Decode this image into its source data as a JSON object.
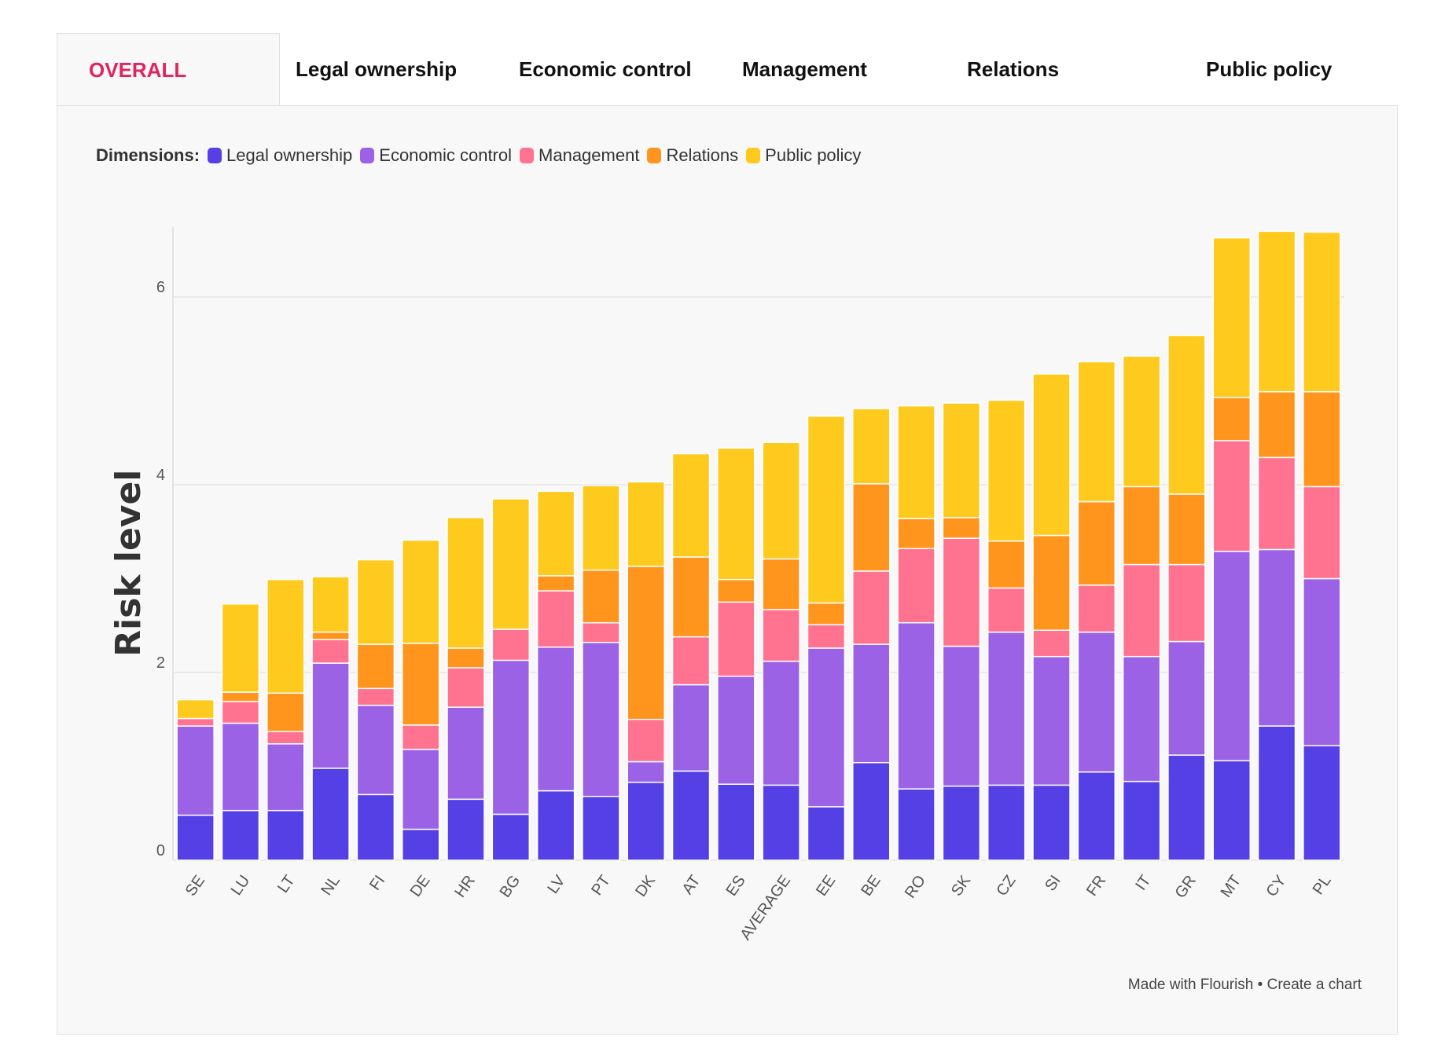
{
  "tabs": [
    {
      "label": "OVERALL"
    },
    {
      "label": "Legal ownership"
    },
    {
      "label": "Economic control"
    },
    {
      "label": "Management"
    },
    {
      "label": "Relations"
    },
    {
      "label": "Public policy"
    }
  ],
  "legend": {
    "title": "Dimensions:",
    "items": [
      {
        "label": "Legal ownership",
        "color": "#5540e6"
      },
      {
        "label": "Economic control",
        "color": "#9b62e6"
      },
      {
        "label": "Management",
        "color": "#ff7290"
      },
      {
        "label": "Relations",
        "color": "#ff951c"
      },
      {
        "label": "Public policy",
        "color": "#ffca1e"
      }
    ]
  },
  "footer": {
    "made_with": "Made with Flourish",
    "separator": "•",
    "create": "Create a chart"
  },
  "chart_data": {
    "type": "bar",
    "stacked": true,
    "ylabel": "Risk level",
    "ylim": [
      0,
      7
    ],
    "yticks": [
      0,
      2,
      4,
      6
    ],
    "grid": true,
    "legend_position": "top-left",
    "categories": [
      "SE",
      "LU",
      "LT",
      "NL",
      "FI",
      "DE",
      "HR",
      "BG",
      "LV",
      "PT",
      "DK",
      "AT",
      "ES",
      "AVERAGE",
      "EE",
      "BE",
      "RO",
      "SK",
      "CZ",
      "SI",
      "FR",
      "IT",
      "GR",
      "MT",
      "CY",
      "PL"
    ],
    "series": [
      {
        "name": "Legal ownership",
        "color": "#5540e6",
        "values": [
          0.48,
          0.53,
          0.53,
          0.98,
          0.7,
          0.33,
          0.65,
          0.49,
          0.74,
          0.68,
          0.83,
          0.95,
          0.81,
          0.8,
          0.57,
          1.04,
          0.76,
          0.79,
          0.8,
          0.8,
          0.94,
          0.84,
          1.12,
          1.06,
          1.43,
          1.22
        ]
      },
      {
        "name": "Economic control",
        "color": "#9b62e6",
        "values": [
          0.95,
          0.93,
          0.71,
          1.12,
          0.95,
          0.85,
          0.98,
          1.64,
          1.53,
          1.64,
          0.22,
          0.92,
          1.15,
          1.32,
          1.69,
          1.26,
          1.77,
          1.49,
          1.63,
          1.37,
          1.49,
          1.33,
          1.21,
          2.23,
          1.88,
          1.78
        ]
      },
      {
        "name": "Management",
        "color": "#ff7290",
        "values": [
          0.08,
          0.23,
          0.13,
          0.25,
          0.18,
          0.26,
          0.42,
          0.33,
          0.6,
          0.21,
          0.45,
          0.51,
          0.79,
          0.55,
          0.25,
          0.78,
          0.79,
          1.15,
          0.47,
          0.28,
          0.5,
          0.98,
          0.82,
          1.18,
          0.98,
          0.98
        ]
      },
      {
        "name": "Relations",
        "color": "#ff951c",
        "values": [
          0.0,
          0.1,
          0.41,
          0.08,
          0.47,
          0.87,
          0.21,
          0.0,
          0.16,
          0.56,
          1.63,
          0.85,
          0.24,
          0.54,
          0.23,
          0.93,
          0.32,
          0.22,
          0.5,
          1.01,
          0.89,
          0.83,
          0.75,
          0.46,
          0.7,
          1.01
        ]
      },
      {
        "name": "Public policy",
        "color": "#ffca1e",
        "values": [
          0.2,
          0.94,
          1.21,
          0.59,
          0.9,
          1.1,
          1.39,
          1.39,
          0.9,
          0.9,
          0.9,
          1.1,
          1.4,
          1.24,
          1.99,
          0.8,
          1.2,
          1.22,
          1.5,
          1.72,
          1.49,
          1.39,
          1.69,
          1.7,
          1.71,
          1.7
        ]
      }
    ]
  }
}
